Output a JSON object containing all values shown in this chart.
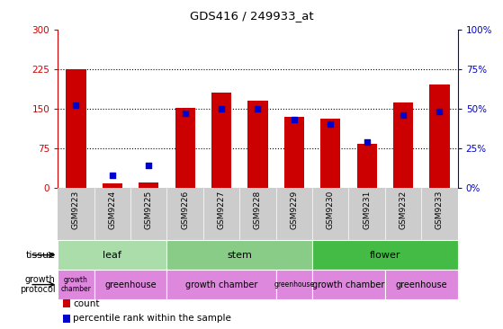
{
  "title": "GDS416 / 249933_at",
  "samples": [
    "GSM9223",
    "GSM9224",
    "GSM9225",
    "GSM9226",
    "GSM9227",
    "GSM9228",
    "GSM9229",
    "GSM9230",
    "GSM9231",
    "GSM9232",
    "GSM9233"
  ],
  "counts": [
    224,
    8,
    10,
    152,
    180,
    165,
    135,
    130,
    83,
    162,
    195
  ],
  "percentiles": [
    52,
    8,
    14,
    47,
    50,
    50,
    43,
    40,
    29,
    46,
    48
  ],
  "left_ylim": [
    0,
    300
  ],
  "left_yticks": [
    0,
    75,
    150,
    225,
    300
  ],
  "right_ylim": [
    0,
    100
  ],
  "right_yticks": [
    0,
    25,
    50,
    75,
    100
  ],
  "right_yticklabels": [
    "0%",
    "25%",
    "50%",
    "75%",
    "100%"
  ],
  "left_color": "#cc0000",
  "right_color": "#0000cc",
  "bar_color": "#cc0000",
  "dot_color": "#0000cc",
  "tissue_groups": [
    {
      "label": "leaf",
      "start": 0,
      "end": 2
    },
    {
      "label": "stem",
      "start": 3,
      "end": 6
    },
    {
      "label": "flower",
      "start": 7,
      "end": 10
    }
  ],
  "tissue_colors": {
    "leaf": "#aaddaa",
    "stem": "#88cc88",
    "flower": "#44bb44"
  },
  "growth_protocol_groups": [
    {
      "label": "growth\nchamber",
      "start": 0,
      "end": 0
    },
    {
      "label": "greenhouse",
      "start": 1,
      "end": 2
    },
    {
      "label": "growth chamber",
      "start": 3,
      "end": 5
    },
    {
      "label": "greenhouse",
      "start": 6,
      "end": 6
    },
    {
      "label": "growth chamber",
      "start": 7,
      "end": 8
    },
    {
      "label": "greenhouse",
      "start": 9,
      "end": 10
    }
  ],
  "growth_color": "#dd88dd",
  "bg_color": "#cccccc",
  "plot_bg": "#ffffff",
  "dotted_lines": [
    75,
    150,
    225
  ],
  "bar_width": 0.55
}
